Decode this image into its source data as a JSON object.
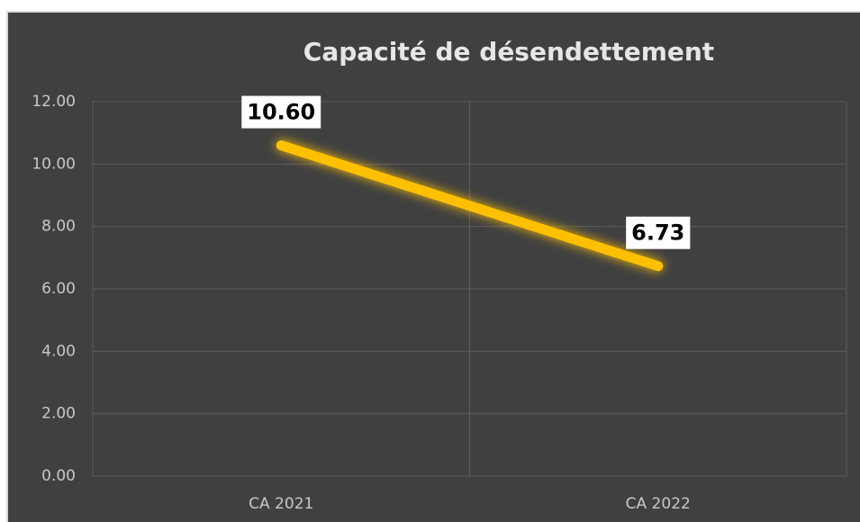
{
  "chart_data": {
    "type": "line",
    "title": "Capacité de désendettement",
    "categories": [
      "CA 2021",
      "CA 2022"
    ],
    "values": [
      10.6,
      6.73
    ],
    "value_labels": [
      "10.60",
      "6.73"
    ],
    "color": "#ffc000",
    "ylim": [
      0,
      12
    ],
    "yticks": [
      {
        "value": 0,
        "label": "0.00"
      },
      {
        "value": 2,
        "label": "2.00"
      },
      {
        "value": 4,
        "label": "4.00"
      },
      {
        "value": 6,
        "label": "6.00"
      },
      {
        "value": 8,
        "label": "8.00"
      },
      {
        "value": 10,
        "label": "10.00"
      },
      {
        "value": 12,
        "label": "12.00"
      }
    ],
    "grid": true
  }
}
